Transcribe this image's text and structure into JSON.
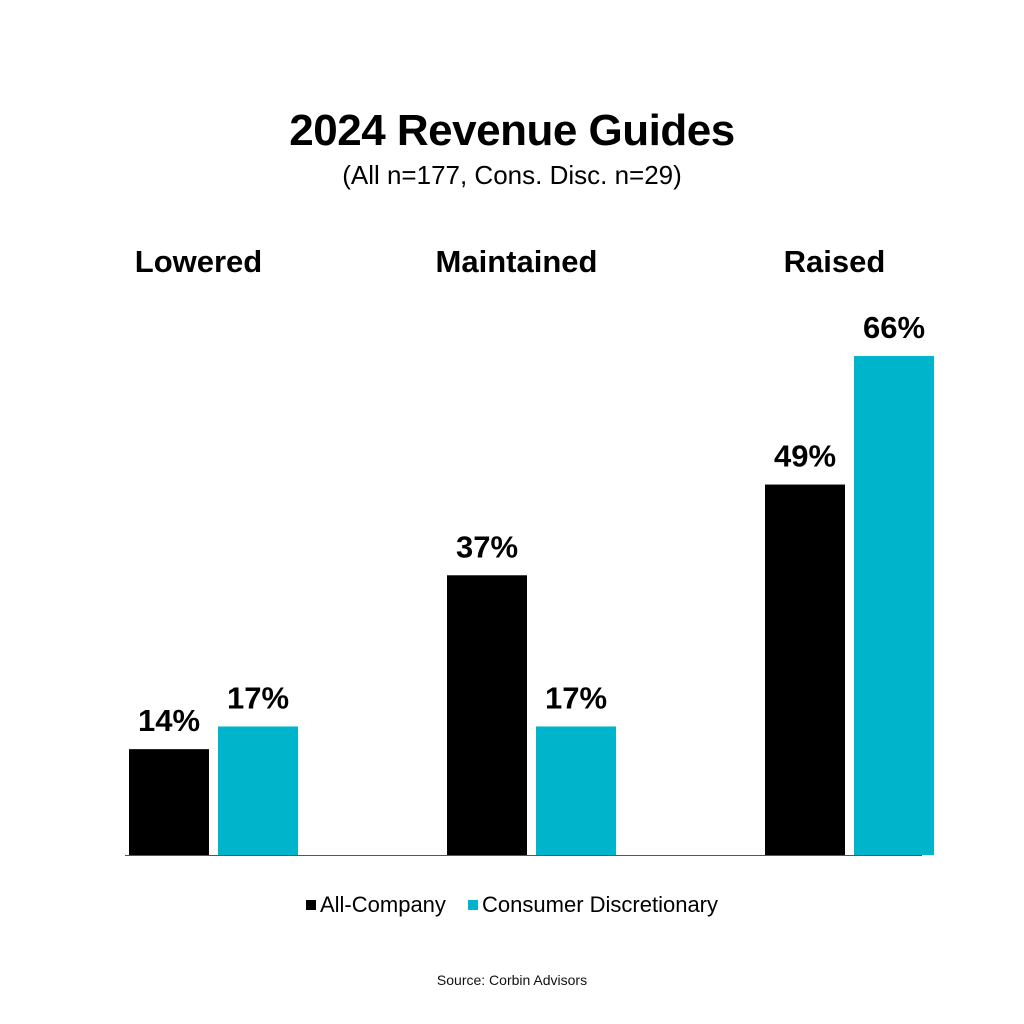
{
  "chart_data": {
    "type": "bar",
    "title": "2024 Revenue Guides",
    "subtitle": "(All n=177, Cons. Disc. n=29)",
    "categories": [
      "Lowered",
      "Maintained",
      "Raised"
    ],
    "series": [
      {
        "name": "All-Company",
        "color": "#000000",
        "values": [
          14,
          37,
          49
        ],
        "labels": [
          "14%",
          "37%",
          "49%"
        ]
      },
      {
        "name": "Consumer Discretionary",
        "color": "#00b4cc",
        "values": [
          17,
          17,
          66
        ],
        "labels": [
          "17%",
          "17%",
          "66%"
        ]
      }
    ],
    "xlabel": "",
    "ylabel": "",
    "ylim": [
      0,
      66
    ],
    "grid": false,
    "legend_position": "bottom-center",
    "value_suffix": "%"
  },
  "source": "Source: Corbin Advisors"
}
